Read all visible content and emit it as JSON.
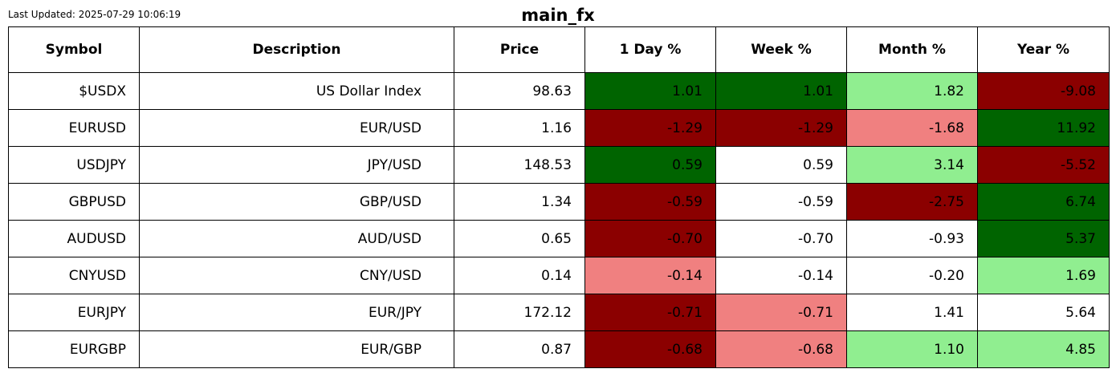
{
  "header": {
    "last_updated": "Last Updated: 2025-07-29 10:06:19",
    "title": "main_fx"
  },
  "colors": {
    "strong_positive": "#006400",
    "positive": "#90ee90",
    "negative": "#f08080",
    "strong_negative": "#8b0000",
    "neutral": "#ffffff"
  },
  "chart_data": {
    "type": "table",
    "title": "main_fx",
    "columns": [
      "Symbol",
      "Description",
      "Price",
      "1 Day %",
      "Week %",
      "Month %",
      "Year %"
    ],
    "rows": [
      {
        "symbol": "$USDX",
        "description": "US Dollar Index",
        "price": "98.63",
        "day": "1.01",
        "week": "1.01",
        "month": "1.82",
        "year": "-9.08",
        "colors": {
          "day": "strong_positive",
          "week": "strong_positive",
          "month": "positive",
          "year": "strong_negative"
        }
      },
      {
        "symbol": "EURUSD",
        "description": "EUR/USD",
        "price": "1.16",
        "day": "-1.29",
        "week": "-1.29",
        "month": "-1.68",
        "year": "11.92",
        "colors": {
          "day": "strong_negative",
          "week": "strong_negative",
          "month": "negative",
          "year": "strong_positive"
        }
      },
      {
        "symbol": "USDJPY",
        "description": "JPY/USD",
        "price": "148.53",
        "day": "0.59",
        "week": "0.59",
        "month": "3.14",
        "year": "-5.52",
        "colors": {
          "day": "strong_positive",
          "week": "neutral",
          "month": "positive",
          "year": "strong_negative"
        }
      },
      {
        "symbol": "GBPUSD",
        "description": "GBP/USD",
        "price": "1.34",
        "day": "-0.59",
        "week": "-0.59",
        "month": "-2.75",
        "year": "6.74",
        "colors": {
          "day": "strong_negative",
          "week": "neutral",
          "month": "strong_negative",
          "year": "strong_positive"
        }
      },
      {
        "symbol": "AUDUSD",
        "description": "AUD/USD",
        "price": "0.65",
        "day": "-0.70",
        "week": "-0.70",
        "month": "-0.93",
        "year": "5.37",
        "colors": {
          "day": "strong_negative",
          "week": "neutral",
          "month": "neutral",
          "year": "strong_positive"
        }
      },
      {
        "symbol": "CNYUSD",
        "description": "CNY/USD",
        "price": "0.14",
        "day": "-0.14",
        "week": "-0.14",
        "month": "-0.20",
        "year": "1.69",
        "colors": {
          "day": "negative",
          "week": "neutral",
          "month": "neutral",
          "year": "positive"
        }
      },
      {
        "symbol": "EURJPY",
        "description": "EUR/JPY",
        "price": "172.12",
        "day": "-0.71",
        "week": "-0.71",
        "month": "1.41",
        "year": "5.64",
        "colors": {
          "day": "strong_negative",
          "week": "negative",
          "month": "neutral",
          "year": "neutral"
        }
      },
      {
        "symbol": "EURGBP",
        "description": "EUR/GBP",
        "price": "0.87",
        "day": "-0.68",
        "week": "-0.68",
        "month": "1.10",
        "year": "4.85",
        "colors": {
          "day": "strong_negative",
          "week": "negative",
          "month": "positive",
          "year": "positive"
        }
      }
    ]
  }
}
